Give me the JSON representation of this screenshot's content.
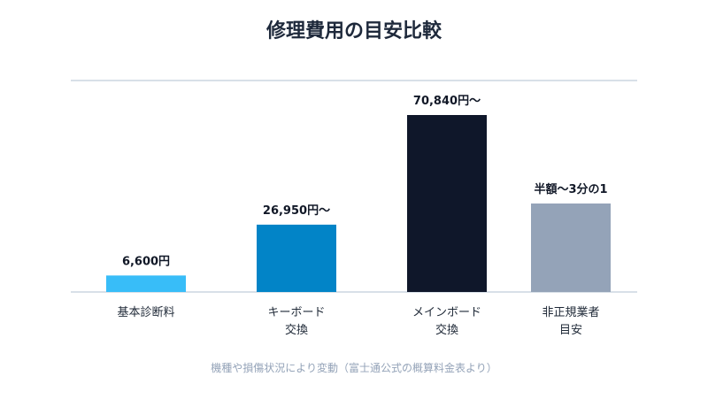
{
  "chart_data": {
    "type": "bar",
    "title": "修理費用の目安比較",
    "categories": [
      [
        "基本診断料"
      ],
      [
        "キーボード",
        "交換"
      ],
      [
        "メインボード",
        "交換"
      ],
      [
        "非正規業者",
        "目安"
      ]
    ],
    "values": [
      6600,
      26950,
      70840,
      35420
    ],
    "value_labels": [
      "6,600円",
      "26,950円〜",
      "70,840円〜",
      "半額〜3分の1"
    ],
    "ylim": [
      0,
      70840
    ],
    "grid": false,
    "note": "機種や損傷状況により変動（富士通公式の概算料金表より）",
    "colors": {
      "bars": [
        "#38bdf8",
        "#0284c7",
        "#0f172a",
        "#94a3b8"
      ],
      "axis": "#cbd5e1",
      "title": "#1e293b",
      "note": "#94a3b8"
    }
  }
}
